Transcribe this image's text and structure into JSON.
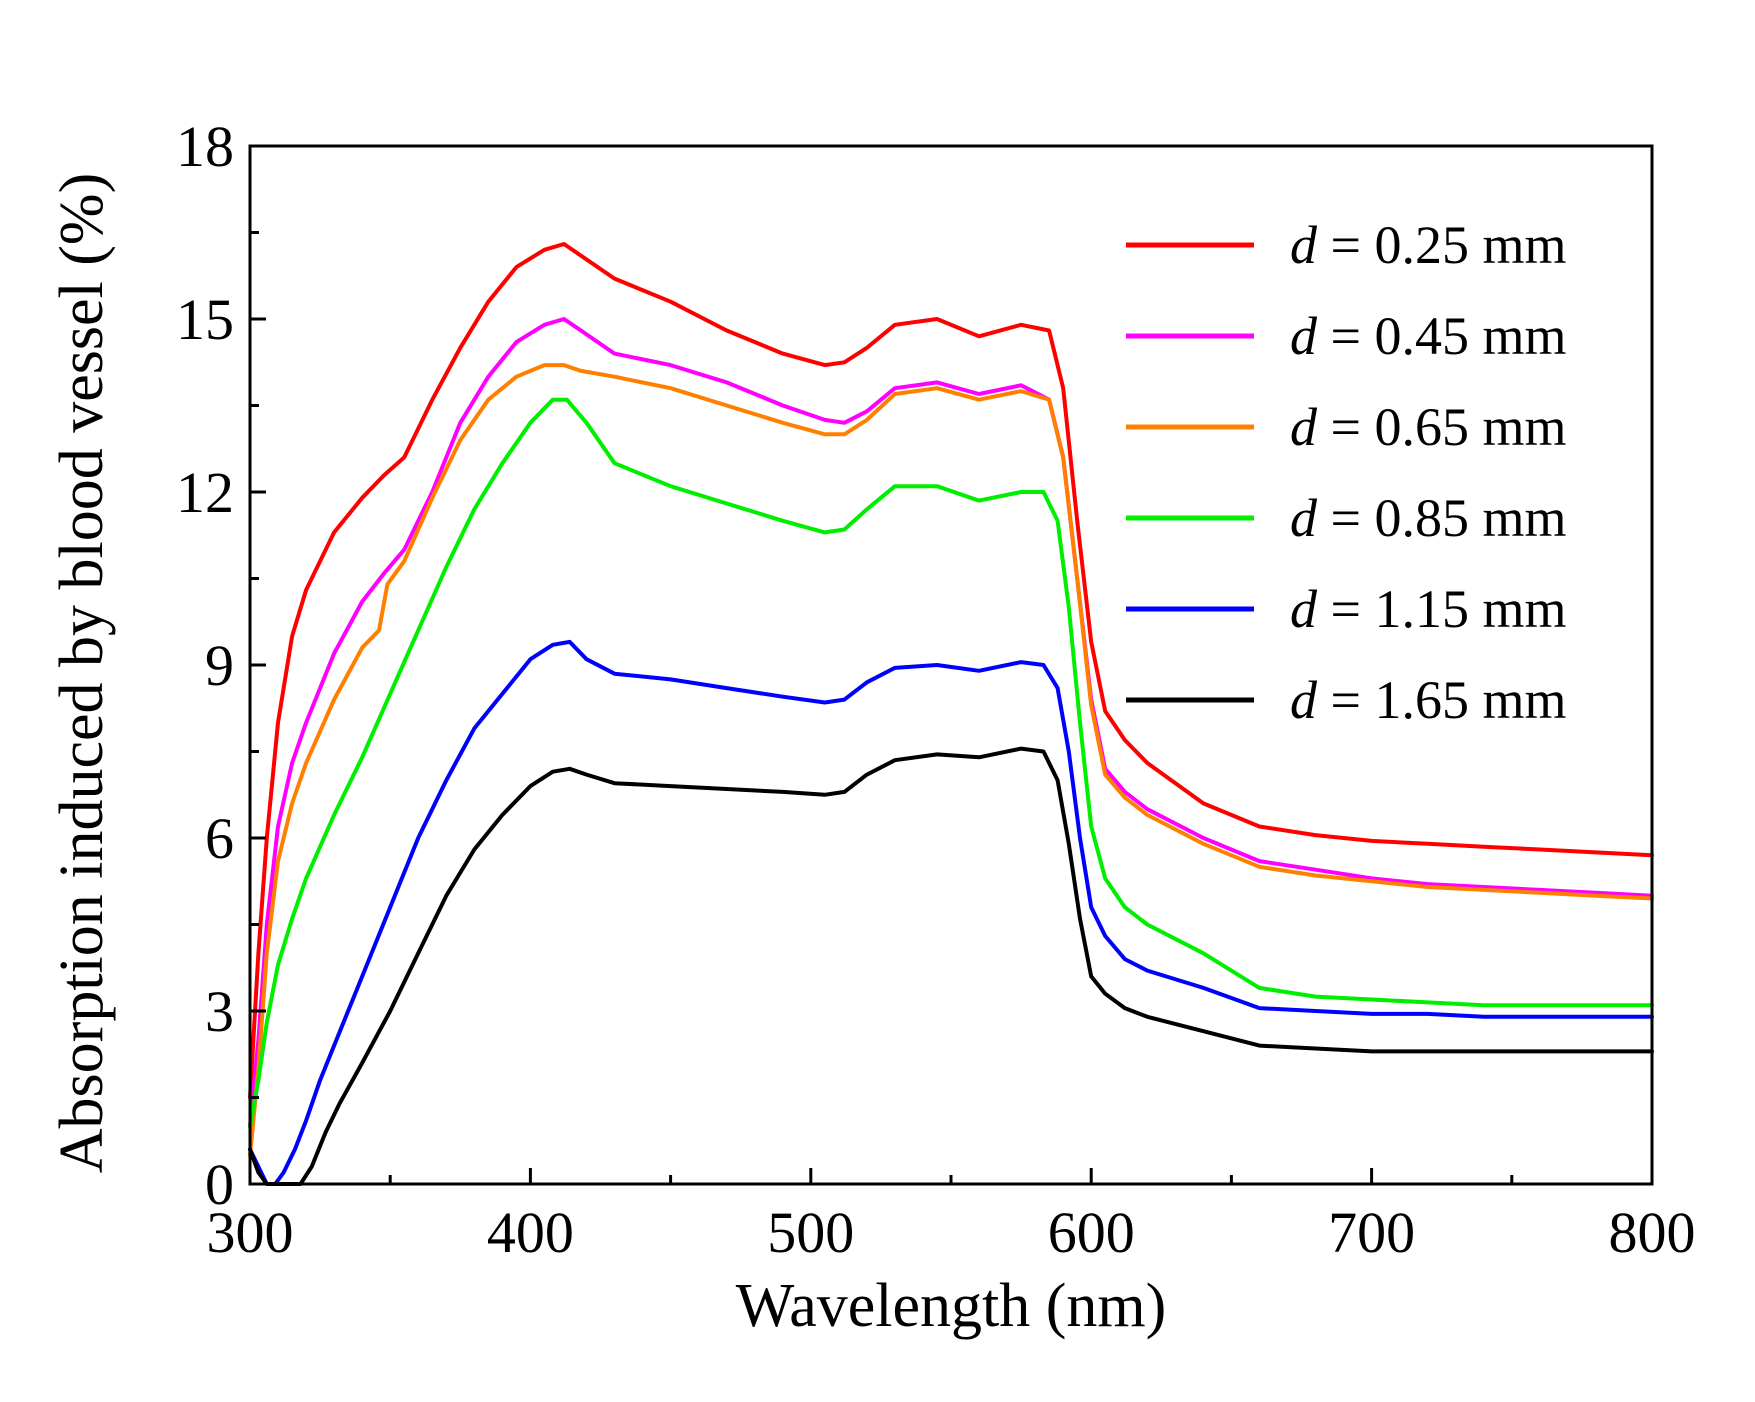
{
  "chart_data": {
    "type": "line",
    "title": "",
    "xlabel": "Wavelength (nm)",
    "ylabel": "Absorption induced by blood vessel (%)",
    "xlim": [
      300,
      800
    ],
    "ylim": [
      0,
      18
    ],
    "xticks": [
      300,
      400,
      500,
      600,
      700,
      800
    ],
    "yticks": [
      0,
      3,
      6,
      9,
      12,
      15,
      18
    ],
    "xtick_labels": [
      "300",
      "400",
      "500",
      "600",
      "700",
      "800"
    ],
    "ytick_labels": [
      "0",
      "3",
      "6",
      "9",
      "12",
      "15",
      "18"
    ],
    "grid": false,
    "legend_position": "top-right",
    "series": [
      {
        "name": "d = 0.25 mm",
        "var": "d",
        "value_label": " = 0.25 mm",
        "color": "#ff0000",
        "x": [
          300,
          303,
          306,
          310,
          315,
          320,
          330,
          340,
          348,
          355,
          365,
          375,
          385,
          395,
          405,
          412,
          418,
          430,
          450,
          470,
          490,
          505,
          512,
          520,
          530,
          545,
          560,
          575,
          585,
          590,
          595,
          600,
          605,
          612,
          620,
          640,
          660,
          680,
          700,
          720,
          740,
          760,
          780,
          800
        ],
        "y": [
          1.5,
          4.0,
          6.0,
          8.0,
          9.5,
          10.3,
          11.3,
          11.9,
          12.3,
          12.6,
          13.6,
          14.5,
          15.3,
          15.9,
          16.2,
          16.3,
          16.1,
          15.7,
          15.3,
          14.8,
          14.4,
          14.2,
          14.25,
          14.5,
          14.9,
          15.0,
          14.7,
          14.9,
          14.8,
          13.8,
          11.5,
          9.4,
          8.2,
          7.7,
          7.3,
          6.6,
          6.2,
          6.05,
          5.95,
          5.9,
          5.85,
          5.8,
          5.75,
          5.7
        ]
      },
      {
        "name": "d = 0.45 mm",
        "var": "d",
        "value_label": " = 0.45 mm",
        "color": "#ff00ff",
        "x": [
          300,
          303,
          306,
          310,
          315,
          320,
          330,
          340,
          348,
          355,
          365,
          375,
          385,
          395,
          405,
          412,
          418,
          430,
          450,
          470,
          490,
          505,
          512,
          520,
          530,
          545,
          560,
          575,
          585,
          590,
          595,
          600,
          605,
          612,
          620,
          640,
          660,
          680,
          700,
          720,
          740,
          760,
          780,
          800
        ],
        "y": [
          1.0,
          2.5,
          4.5,
          6.2,
          7.3,
          8.0,
          9.2,
          10.1,
          10.6,
          11.0,
          12.0,
          13.2,
          14.0,
          14.6,
          14.9,
          15.0,
          14.8,
          14.4,
          14.2,
          13.9,
          13.5,
          13.25,
          13.2,
          13.4,
          13.8,
          13.9,
          13.7,
          13.85,
          13.6,
          12.6,
          10.5,
          8.4,
          7.2,
          6.8,
          6.5,
          6.0,
          5.6,
          5.45,
          5.3,
          5.2,
          5.15,
          5.1,
          5.05,
          5.0
        ]
      },
      {
        "name": "d = 0.65 mm",
        "var": "d",
        "value_label": " = 0.65 mm",
        "color": "#ff8000",
        "x": [
          300,
          303,
          306,
          310,
          315,
          320,
          330,
          340,
          346,
          349,
          355,
          365,
          375,
          385,
          395,
          405,
          412,
          418,
          430,
          450,
          470,
          490,
          505,
          512,
          520,
          530,
          545,
          560,
          575,
          585,
          590,
          595,
          600,
          605,
          612,
          620,
          640,
          660,
          680,
          700,
          720,
          740,
          760,
          780,
          800
        ],
        "y": [
          0.5,
          2.0,
          4.0,
          5.6,
          6.6,
          7.3,
          8.4,
          9.3,
          9.6,
          10.4,
          10.8,
          11.9,
          12.9,
          13.6,
          14.0,
          14.2,
          14.2,
          14.1,
          14.0,
          13.8,
          13.5,
          13.2,
          13.0,
          13.0,
          13.25,
          13.7,
          13.8,
          13.6,
          13.75,
          13.6,
          12.6,
          10.5,
          8.3,
          7.1,
          6.7,
          6.4,
          5.9,
          5.5,
          5.35,
          5.25,
          5.15,
          5.1,
          5.05,
          5.0,
          4.95
        ]
      },
      {
        "name": "d = 0.85 mm",
        "var": "d",
        "value_label": " = 0.85 mm",
        "color": "#00ee00",
        "x": [
          300,
          303,
          306,
          310,
          315,
          320,
          330,
          340,
          350,
          360,
          370,
          380,
          390,
          400,
          408,
          413,
          420,
          430,
          450,
          470,
          490,
          505,
          512,
          520,
          530,
          545,
          560,
          575,
          583,
          588,
          592,
          596,
          600,
          605,
          612,
          620,
          640,
          660,
          680,
          700,
          720,
          740,
          760,
          780,
          800
        ],
        "y": [
          1.0,
          1.8,
          2.8,
          3.8,
          4.6,
          5.3,
          6.4,
          7.4,
          8.5,
          9.6,
          10.7,
          11.7,
          12.5,
          13.2,
          13.6,
          13.6,
          13.2,
          12.5,
          12.1,
          11.8,
          11.5,
          11.3,
          11.35,
          11.7,
          12.1,
          12.1,
          11.85,
          12.0,
          12.0,
          11.5,
          10.0,
          8.0,
          6.2,
          5.3,
          4.8,
          4.5,
          4.0,
          3.4,
          3.25,
          3.2,
          3.15,
          3.1,
          3.1,
          3.1,
          3.1
        ]
      },
      {
        "name": "d = 1.15 mm",
        "var": "d",
        "value_label": " = 1.15 mm",
        "color": "#0000ff",
        "x": [
          300,
          303,
          306,
          309,
          312,
          316,
          320,
          325,
          330,
          340,
          350,
          360,
          370,
          380,
          390,
          400,
          408,
          414,
          420,
          430,
          450,
          470,
          490,
          505,
          512,
          520,
          530,
          545,
          560,
          575,
          583,
          588,
          592,
          596,
          600,
          605,
          612,
          620,
          640,
          660,
          680,
          700,
          720,
          740,
          760,
          780,
          800
        ],
        "y": [
          0.6,
          0.3,
          0.0,
          0.0,
          0.2,
          0.6,
          1.1,
          1.8,
          2.4,
          3.6,
          4.8,
          6.0,
          7.0,
          7.9,
          8.5,
          9.1,
          9.35,
          9.4,
          9.1,
          8.85,
          8.75,
          8.6,
          8.45,
          8.35,
          8.4,
          8.7,
          8.95,
          9.0,
          8.9,
          9.05,
          9.0,
          8.6,
          7.5,
          6.0,
          4.8,
          4.3,
          3.9,
          3.7,
          3.4,
          3.05,
          3.0,
          2.95,
          2.95,
          2.9,
          2.9,
          2.9,
          2.9
        ]
      },
      {
        "name": "d = 1.65 mm",
        "var": "d",
        "value_label": " = 1.65 mm",
        "color": "#000000",
        "x": [
          300,
          303,
          306,
          310,
          314,
          318,
          322,
          327,
          332,
          340,
          350,
          360,
          370,
          380,
          390,
          400,
          408,
          414,
          420,
          430,
          450,
          470,
          490,
          505,
          512,
          520,
          530,
          545,
          560,
          575,
          583,
          588,
          592,
          596,
          600,
          605,
          612,
          620,
          640,
          660,
          680,
          700,
          720,
          740,
          760,
          780,
          800
        ],
        "y": [
          0.6,
          0.2,
          0.0,
          0.0,
          0.0,
          0.0,
          0.3,
          0.9,
          1.4,
          2.1,
          3.0,
          4.0,
          5.0,
          5.8,
          6.4,
          6.9,
          7.15,
          7.2,
          7.1,
          6.95,
          6.9,
          6.85,
          6.8,
          6.75,
          6.8,
          7.1,
          7.35,
          7.45,
          7.4,
          7.55,
          7.5,
          7.0,
          5.9,
          4.6,
          3.6,
          3.3,
          3.05,
          2.9,
          2.65,
          2.4,
          2.35,
          2.3,
          2.3,
          2.3,
          2.3,
          2.3,
          2.3
        ]
      }
    ]
  }
}
